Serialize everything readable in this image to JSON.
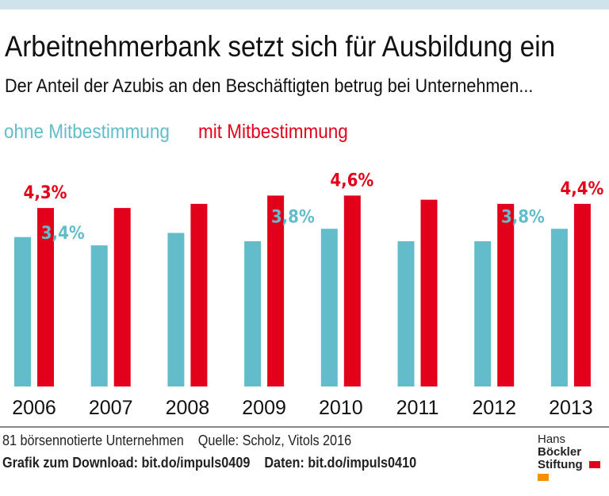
{
  "title": "Arbeitnehmerbank setzt sich für Ausbildung ein",
  "subtitle": "Der Anteil der Azubis an den Beschäftigten betrug bei Unternehmen...",
  "colors": {
    "ohne": "#62bcca",
    "mit": "#e3001b",
    "strip": "#cfe3ec"
  },
  "chart_data": {
    "type": "bar",
    "categories": [
      "2006",
      "2007",
      "2008",
      "2009",
      "2010",
      "2011",
      "2012",
      "2013"
    ],
    "series": [
      {
        "name": "ohne Mitbestimmung",
        "values": [
          3.6,
          3.4,
          3.7,
          3.5,
          3.8,
          3.5,
          3.5,
          3.8
        ],
        "labels": {
          "1": "3,4%",
          "4": "3,8%",
          "7": "3,8%"
        }
      },
      {
        "name": "mit Mitbestimmung",
        "values": [
          4.3,
          4.3,
          4.4,
          4.6,
          4.6,
          4.5,
          4.4,
          4.4
        ],
        "labels": {
          "0": "4,3%",
          "4": "4,6%",
          "7": "4,4%"
        }
      }
    ],
    "ylim": [
      0,
      5
    ],
    "grid": false,
    "legend": "top-left"
  },
  "footer": {
    "note": "81 börsennotierte Unternehmen",
    "source": "Quelle: Scholz, Vitols 2016",
    "download": "Grafik zum Download: bit.do/impuls0409",
    "data": "Daten: bit.do/impuls0410"
  },
  "logo": {
    "line1a": "Hans ",
    "line1b": "Böckler",
    "line2": "Stiftung"
  }
}
